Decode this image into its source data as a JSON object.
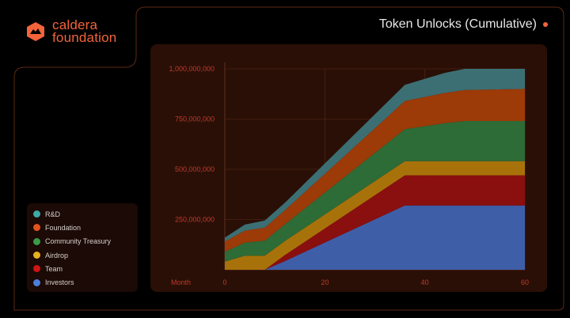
{
  "brand": {
    "line1": "caldera",
    "line2": "foundation",
    "color": "#f2643a",
    "icon": "caldera-hexagon-logo"
  },
  "header": {
    "title": "Token Unlocks (Cumulative)",
    "accent_dot_color": "#f2643a"
  },
  "chart_data": {
    "type": "area",
    "stacked": true,
    "title": "Token Unlocks (Cumulative)",
    "xlabel": "Month",
    "ylabel": "",
    "xlim": [
      0,
      60
    ],
    "ylim": [
      0,
      1000000000
    ],
    "x_ticks": [
      0,
      20,
      40,
      60
    ],
    "y_ticks": [
      250000000,
      500000000,
      750000000,
      1000000000
    ],
    "y_tick_labels": [
      "250,000,000",
      "500,000,000",
      "750,000,000",
      "1,000,000,000"
    ],
    "grid": true,
    "legend_position": "left-bottom",
    "x": [
      0,
      4,
      8,
      12,
      36,
      44,
      48,
      60
    ],
    "series": [
      {
        "name": "Investors",
        "color": "#3f5ea8",
        "values": [
          0,
          0,
          0,
          43000000,
          320000000,
          320000000,
          320000000,
          320000000
        ]
      },
      {
        "name": "Team",
        "color": "#8a0f0f",
        "values": [
          0,
          0,
          0,
          30000000,
          150000000,
          150000000,
          150000000,
          150000000
        ]
      },
      {
        "name": "Airdrop",
        "color": "#a8720a",
        "values": [
          40000000,
          70000000,
          70000000,
          70000000,
          70000000,
          70000000,
          70000000,
          70000000
        ]
      },
      {
        "name": "Community Treasury",
        "color": "#2d6b37",
        "values": [
          50000000,
          65000000,
          75000000,
          83000000,
          160000000,
          190000000,
          200000000,
          200000000
        ]
      },
      {
        "name": "Foundation",
        "color": "#9c3a08",
        "values": [
          50000000,
          60000000,
          65000000,
          70000000,
          140000000,
          150000000,
          155000000,
          160000000
        ]
      },
      {
        "name": "R&D",
        "color": "#3c6f73",
        "values": [
          20000000,
          30000000,
          35000000,
          37000000,
          80000000,
          100000000,
          105000000,
          100000000
        ]
      }
    ]
  },
  "legend": {
    "items": [
      {
        "label": "R&D",
        "color": "#3fa8a8"
      },
      {
        "label": "Foundation",
        "color": "#e0531f"
      },
      {
        "label": "Community Treasury",
        "color": "#3a9a4a"
      },
      {
        "label": "Airdrop",
        "color": "#e8b020"
      },
      {
        "label": "Team",
        "color": "#d01515"
      },
      {
        "label": "Investors",
        "color": "#4a7fd8"
      }
    ]
  }
}
